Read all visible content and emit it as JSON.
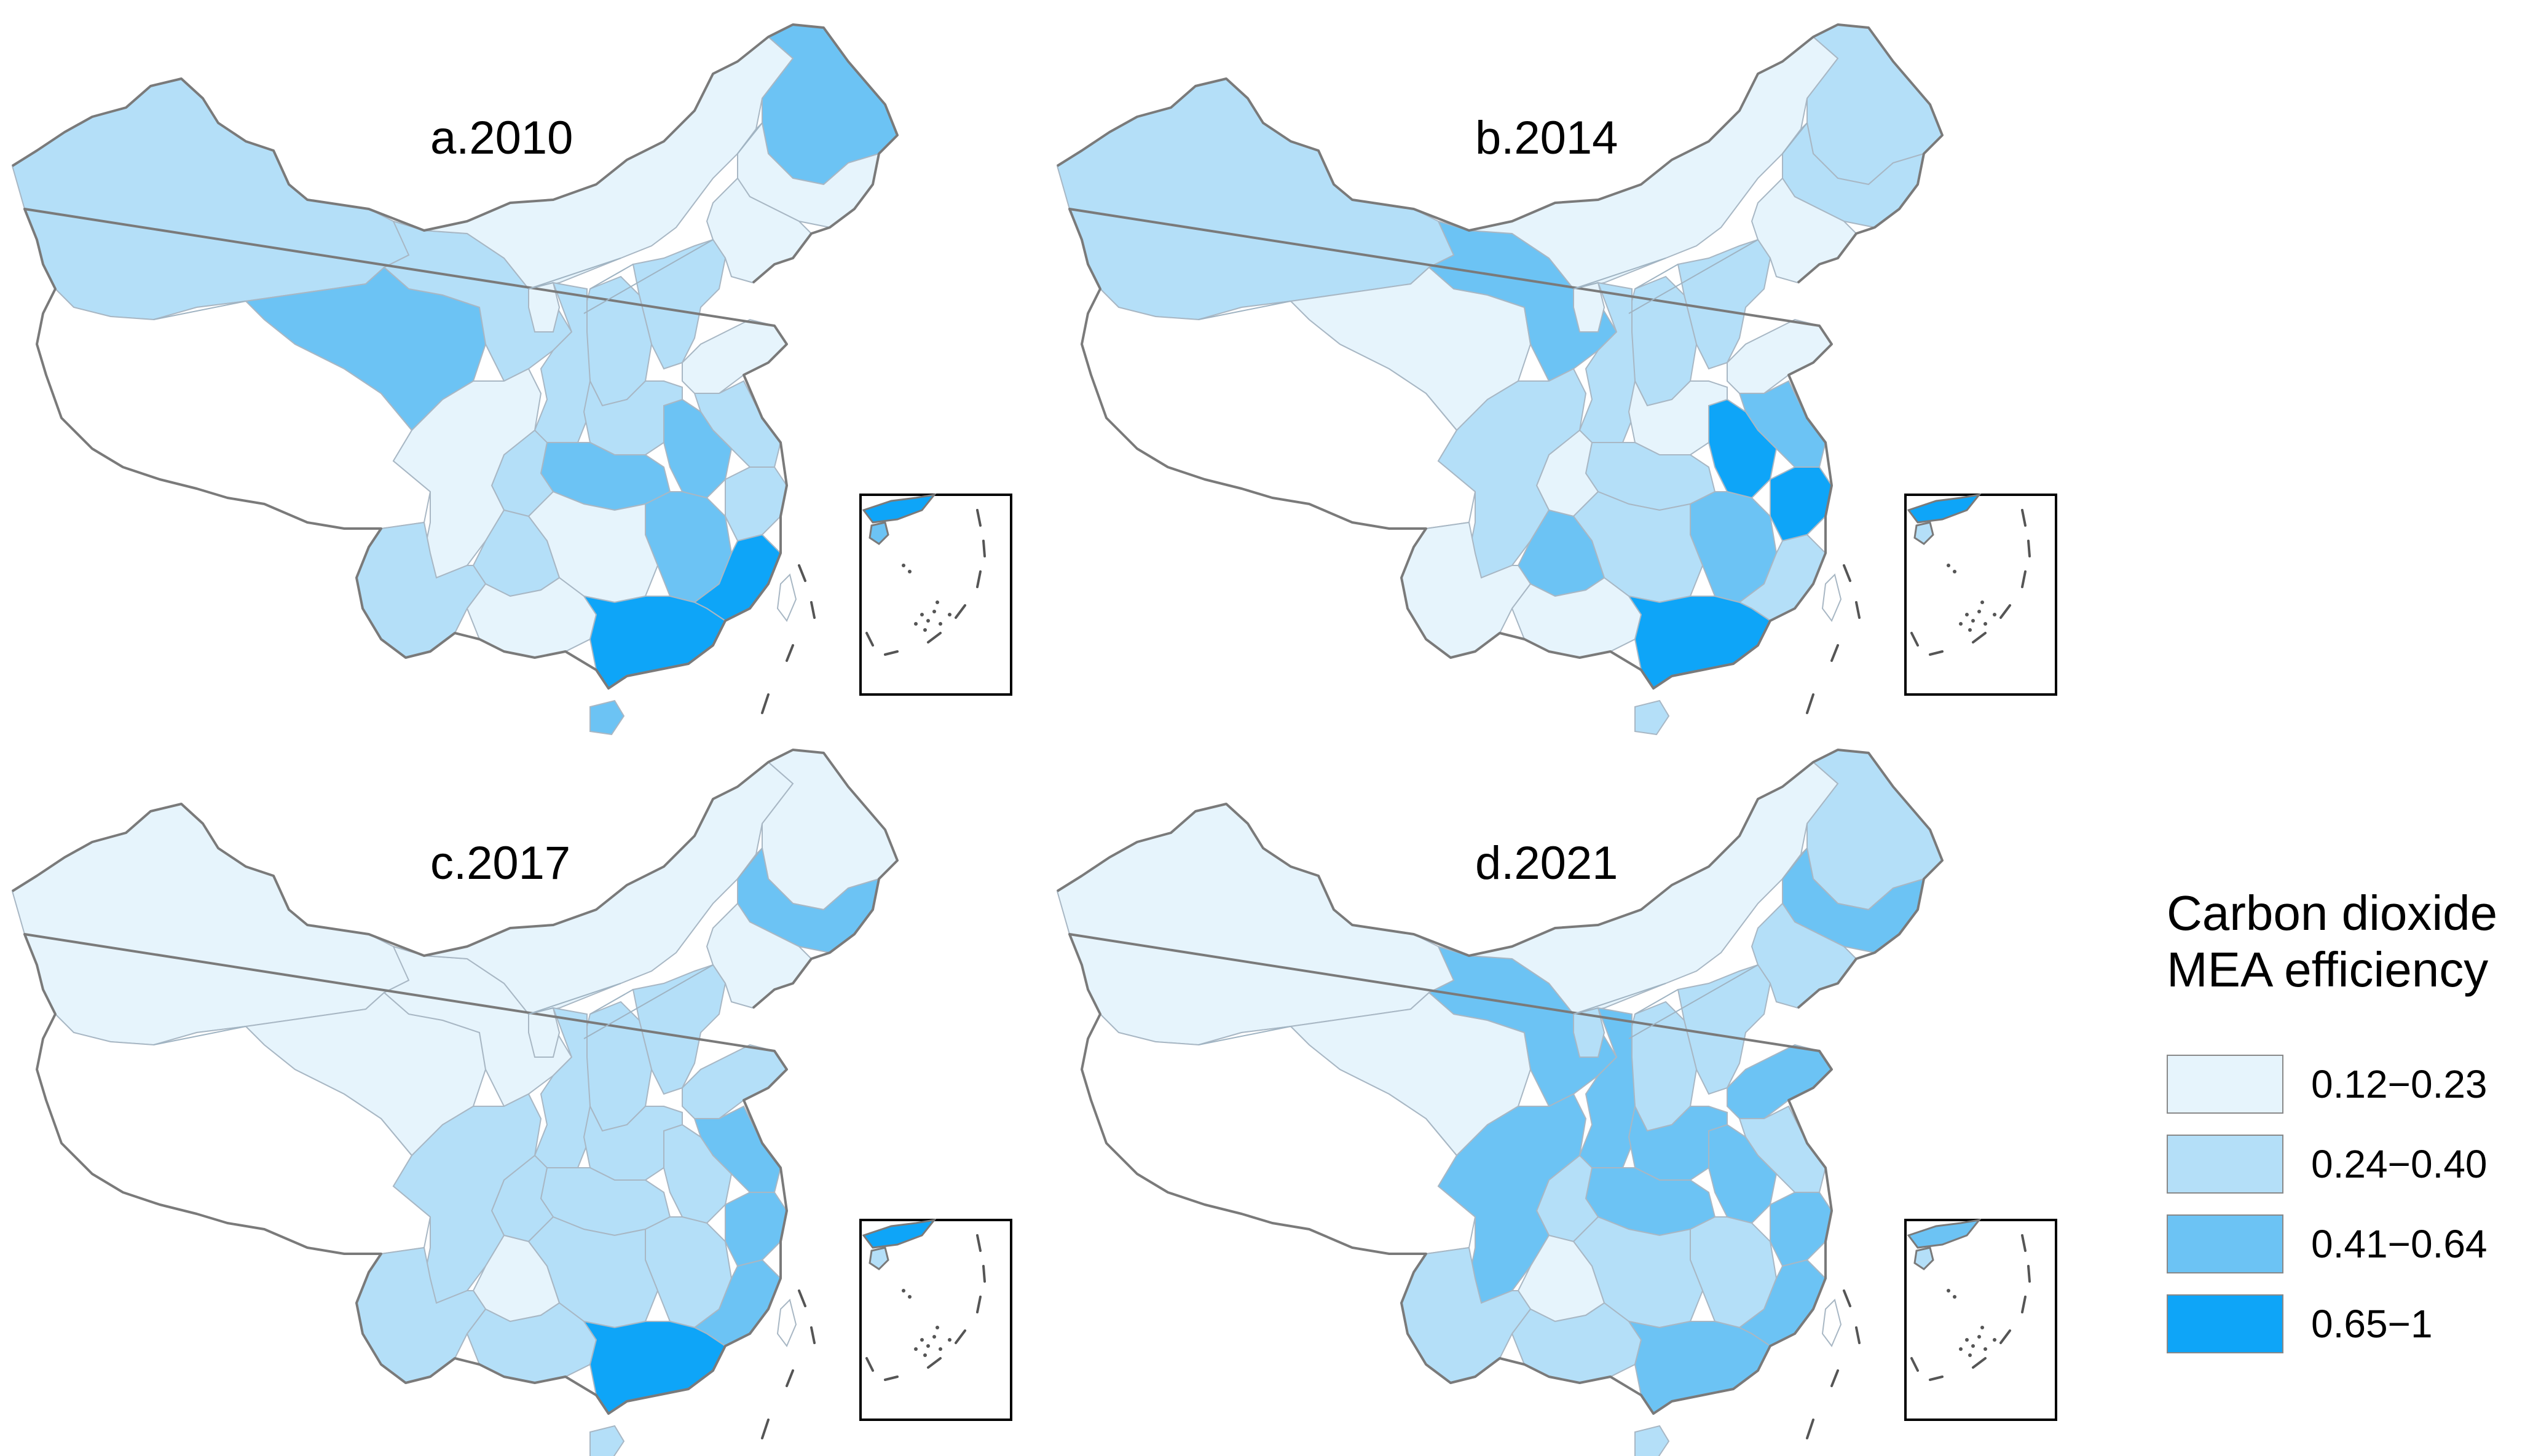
{
  "palette": {
    "c1": "#e6f4fc",
    "c2": "#b4dff8",
    "c3": "#6cc3f4",
    "c4": "#0ea5f8"
  },
  "panels": [
    {
      "id": "a",
      "title": "a.2010",
      "regions": {
        "xinjiang": "c2",
        "tibet": "c0",
        "qinghai": "c3",
        "gansu": "c2",
        "innermongolia": "c1",
        "heilongjiang": "c3",
        "jilin": "c1",
        "liaoning": "c1",
        "beijing": "c3",
        "hebei": "c2",
        "shandong": "c1",
        "sichuan": "c1",
        "yunnan": "c2",
        "guizhou": "c2",
        "hunan": "c1",
        "jiangxi": "c3",
        "hubei": "c3",
        "henan": "c2",
        "anhui": "c3",
        "jiangsu": "c2",
        "zhejiang": "c2",
        "fujian": "c4",
        "guangdong": "c4",
        "guangxi": "c1",
        "hainan": "c3",
        "shaanxi": "c2",
        "shanxi": "c2",
        "ningxia": "c1",
        "chongqing": "c2",
        "taiwan": "c0"
      }
    },
    {
      "id": "b",
      "title": "b.2014",
      "regions": {
        "xinjiang": "c2",
        "tibet": "c0",
        "qinghai": "c1",
        "gansu": "c3",
        "innermongolia": "c1",
        "heilongjiang": "c2",
        "jilin": "c2",
        "liaoning": "c1",
        "beijing": "c3",
        "hebei": "c2",
        "shandong": "c1",
        "sichuan": "c2",
        "yunnan": "c1",
        "guizhou": "c3",
        "hunan": "c2",
        "jiangxi": "c3",
        "hubei": "c2",
        "henan": "c1",
        "anhui": "c4",
        "jiangsu": "c3",
        "zhejiang": "c4",
        "fujian": "c2",
        "guangdong": "c4",
        "guangxi": "c1",
        "hainan": "c2",
        "shaanxi": "c2",
        "shanxi": "c2",
        "ningxia": "c1",
        "chongqing": "c1",
        "taiwan": "c0"
      }
    },
    {
      "id": "c",
      "title": "c.2017",
      "regions": {
        "xinjiang": "c1",
        "tibet": "c0",
        "qinghai": "c1",
        "gansu": "c1",
        "innermongolia": "c1",
        "heilongjiang": "c1",
        "jilin": "c3",
        "liaoning": "c1",
        "beijing": "c3",
        "hebei": "c2",
        "shandong": "c2",
        "sichuan": "c2",
        "yunnan": "c2",
        "guizhou": "c1",
        "hunan": "c2",
        "jiangxi": "c2",
        "hubei": "c2",
        "henan": "c2",
        "anhui": "c2",
        "jiangsu": "c3",
        "zhejiang": "c3",
        "fujian": "c3",
        "guangdong": "c4",
        "guangxi": "c2",
        "hainan": "c2",
        "shaanxi": "c2",
        "shanxi": "c2",
        "ningxia": "c1",
        "chongqing": "c2",
        "taiwan": "c0"
      }
    },
    {
      "id": "d",
      "title": "d.2021",
      "regions": {
        "xinjiang": "c1",
        "tibet": "c0",
        "qinghai": "c1",
        "gansu": "c3",
        "innermongolia": "c1",
        "heilongjiang": "c2",
        "jilin": "c3",
        "liaoning": "c2",
        "beijing": "c4",
        "hebei": "c2",
        "shandong": "c3",
        "sichuan": "c3",
        "yunnan": "c2",
        "guizhou": "c1",
        "hunan": "c2",
        "jiangxi": "c2",
        "hubei": "c3",
        "henan": "c3",
        "anhui": "c3",
        "jiangsu": "c2",
        "zhejiang": "c3",
        "fujian": "c3",
        "guangdong": "c3",
        "guangxi": "c2",
        "hainan": "c2",
        "shaanxi": "c3",
        "shanxi": "c2",
        "ningxia": "c2",
        "chongqing": "c2",
        "taiwan": "c0"
      }
    }
  ],
  "legend": {
    "title_line1": "Carbon dioxide",
    "title_line2": "MEA efficiency",
    "items": [
      {
        "label": "0.12−0.23",
        "color": "#e6f4fc"
      },
      {
        "label": "0.24−0.40",
        "color": "#b4dff8"
      },
      {
        "label": "0.41−0.64",
        "color": "#6cc3f4"
      },
      {
        "label": "0.65−1",
        "color": "#0ea5f8"
      }
    ]
  }
}
